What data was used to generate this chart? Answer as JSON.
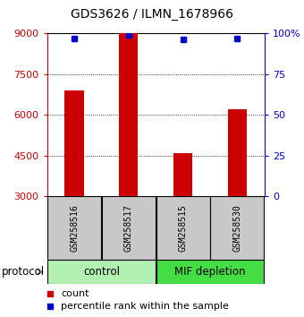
{
  "title": "GDS3626 / ILMN_1678966",
  "samples": [
    "GSM258516",
    "GSM258517",
    "GSM258515",
    "GSM258530"
  ],
  "counts": [
    6900,
    9000,
    4600,
    6200
  ],
  "percentile_ranks": [
    97,
    99,
    96,
    97
  ],
  "group_colors": {
    "control": "#b2f0b2",
    "MIF depletion": "#44dd44"
  },
  "bar_color": "#cc0000",
  "dot_color": "#0000cc",
  "ylim_left": [
    3000,
    9000
  ],
  "ylim_right": [
    0,
    100
  ],
  "yticks_left": [
    3000,
    4500,
    6000,
    7500,
    9000
  ],
  "yticks_right": [
    0,
    25,
    50,
    75,
    100
  ],
  "ylabel_left_color": "#cc0000",
  "ylabel_right_color": "#0000cc",
  "sample_box_color": "#c8c8c8",
  "protocol_label": "protocol",
  "legend_count_label": "count",
  "legend_percentile_label": "percentile rank within the sample"
}
